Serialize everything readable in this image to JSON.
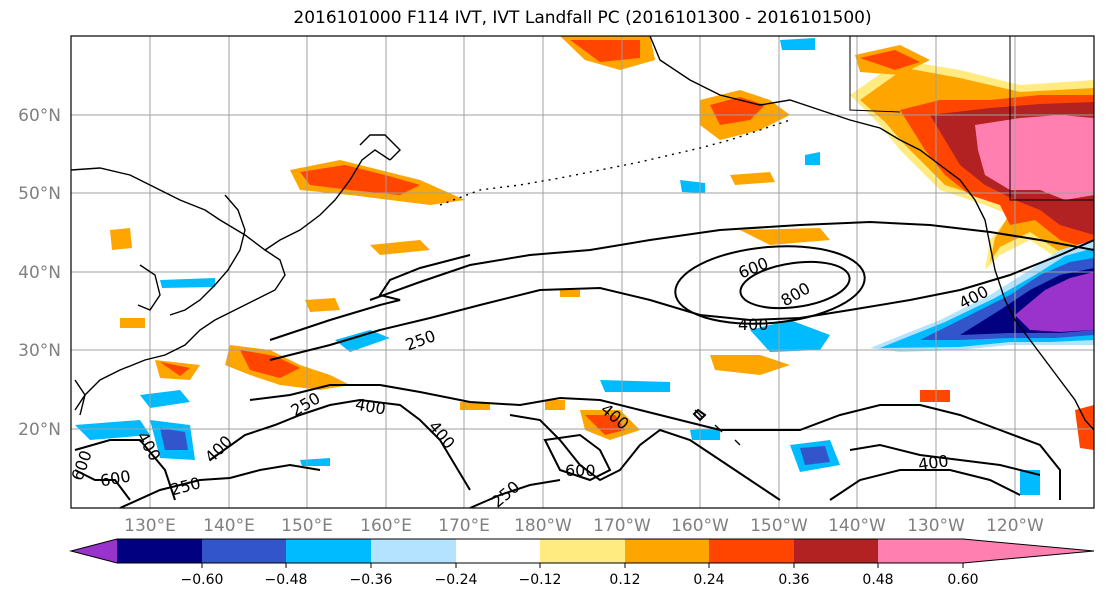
{
  "title": "2016101000 F114 IVT, IVT Landfall PC (2016101300 - 2016101500)",
  "lat_labels": [
    "60°N",
    "50°N",
    "40°N",
    "30°N",
    "20°N"
  ],
  "lon_labels": [
    "130°E",
    "140°E",
    "150°E",
    "160°E",
    "170°E",
    "180°W",
    "170°W",
    "160°W",
    "150°W",
    "140°W",
    "130°W",
    "120°W"
  ],
  "colorbar": {
    "ticks": [
      "−0.60",
      "−0.48",
      "−0.36",
      "−0.24",
      "−0.12",
      "0.12",
      "0.24",
      "0.36",
      "0.48",
      "0.60"
    ],
    "colors": [
      "#9933cc",
      "#000080",
      "#3355cc",
      "#00bbff",
      "#b3e3ff",
      "#ffffff",
      "#ffeb80",
      "#ffa500",
      "#ff4500",
      "#b22222",
      "#ff80b0"
    ]
  },
  "contour_labels": [
    "600",
    "800",
    "400",
    "400",
    "250",
    "250",
    "400",
    "400",
    "400",
    "400",
    "600",
    "400",
    "600",
    "250",
    "250",
    "400",
    "600"
  ]
}
